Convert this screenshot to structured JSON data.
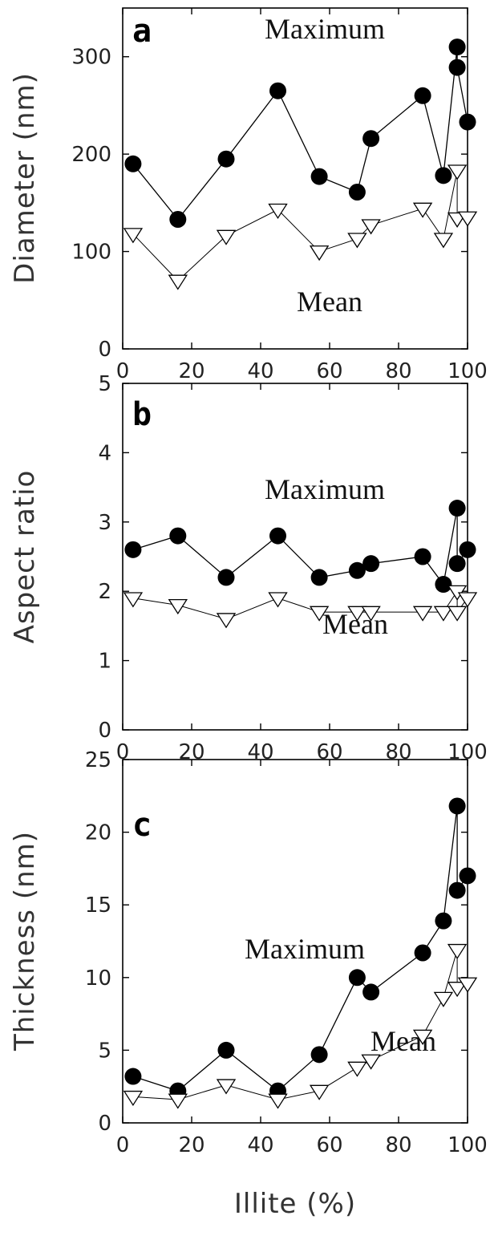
{
  "chart_data": [
    {
      "type": "line",
      "panel": "a",
      "ylabel": "Diameter (nm)",
      "xlim": [
        0,
        100
      ],
      "ylim": [
        0,
        350
      ],
      "xticks": [
        0,
        20,
        40,
        60,
        80,
        100
      ],
      "yticks": [
        0,
        100,
        200,
        300
      ],
      "annotations": {
        "maximum": "Maximum",
        "mean": "Mean"
      },
      "series": [
        {
          "name": "Maximum",
          "marker": "filled-circle",
          "x": [
            3,
            16,
            30,
            45,
            57,
            68,
            72,
            87,
            93,
            97,
            97,
            100
          ],
          "y": [
            190,
            133,
            195,
            265,
            177,
            161,
            216,
            260,
            178,
            310,
            289,
            233
          ]
        },
        {
          "name": "Mean",
          "marker": "open-triangle-down",
          "x": [
            3,
            16,
            30,
            45,
            57,
            68,
            72,
            87,
            93,
            97,
            97,
            100
          ],
          "y": [
            118,
            70,
            116,
            143,
            100,
            113,
            127,
            144,
            113,
            183,
            134,
            135
          ]
        }
      ]
    },
    {
      "type": "line",
      "panel": "b",
      "ylabel": "Aspect ratio",
      "xlim": [
        0,
        100
      ],
      "ylim": [
        0,
        5
      ],
      "xticks": [
        0,
        20,
        40,
        60,
        80,
        100
      ],
      "yticks": [
        0,
        1,
        2,
        3,
        4,
        5
      ],
      "annotations": {
        "maximum": "Maximum",
        "mean": "Mean"
      },
      "series": [
        {
          "name": "Maximum",
          "marker": "filled-circle",
          "x": [
            3,
            16,
            30,
            45,
            57,
            68,
            72,
            87,
            93,
            97,
            97,
            100
          ],
          "y": [
            2.6,
            2.8,
            2.2,
            2.8,
            2.2,
            2.3,
            2.4,
            2.5,
            2.1,
            3.2,
            2.4,
            2.6
          ]
        },
        {
          "name": "Mean",
          "marker": "open-triangle-down",
          "x": [
            3,
            16,
            30,
            45,
            57,
            68,
            72,
            87,
            93,
            97,
            97,
            100
          ],
          "y": [
            1.9,
            1.8,
            1.6,
            1.9,
            1.7,
            1.7,
            1.7,
            1.7,
            1.7,
            2.0,
            1.7,
            1.9
          ]
        }
      ]
    },
    {
      "type": "line",
      "panel": "c",
      "ylabel": "Thickness (nm)",
      "xlabel": "Illite (%)",
      "xlim": [
        0,
        100
      ],
      "ylim": [
        0,
        25
      ],
      "xticks": [
        0,
        20,
        40,
        60,
        80,
        100
      ],
      "yticks": [
        0,
        5,
        10,
        15,
        20,
        25
      ],
      "annotations": {
        "maximum": "Maximum",
        "mean": "Mean"
      },
      "series": [
        {
          "name": "Maximum",
          "marker": "filled-circle",
          "x": [
            3,
            16,
            30,
            45,
            57,
            68,
            72,
            87,
            93,
            97,
            97,
            100
          ],
          "y": [
            3.2,
            2.2,
            5.0,
            2.2,
            4.7,
            10.0,
            9.0,
            11.7,
            13.9,
            21.8,
            16.0,
            17.0
          ]
        },
        {
          "name": "Mean",
          "marker": "open-triangle-down",
          "x": [
            3,
            16,
            30,
            45,
            57,
            68,
            72,
            87,
            93,
            97,
            97,
            100
          ],
          "y": [
            1.8,
            1.6,
            2.6,
            1.6,
            2.2,
            3.8,
            4.3,
            6.0,
            8.6,
            11.9,
            9.3,
            9.6
          ]
        }
      ]
    }
  ]
}
